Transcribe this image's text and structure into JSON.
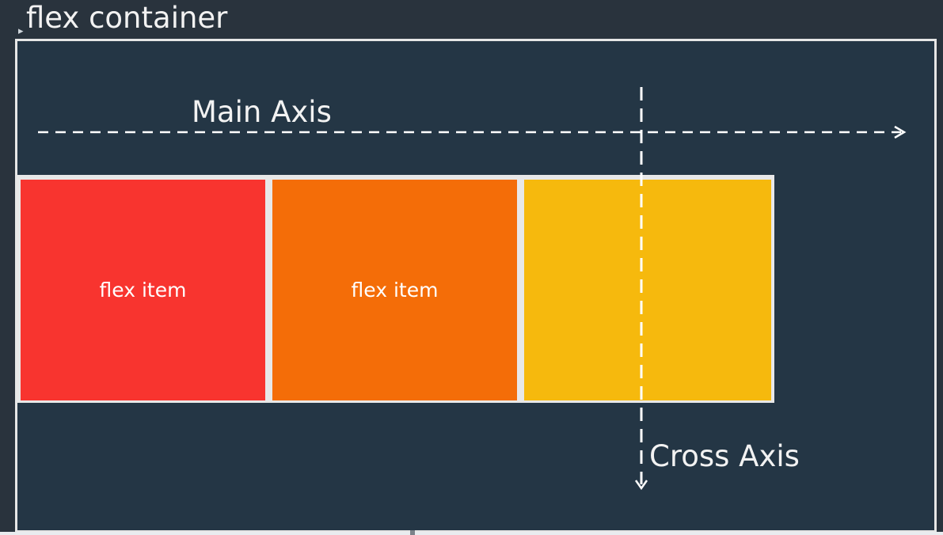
{
  "diagram": {
    "title": "flex container",
    "main_axis_label": "Main Axis",
    "cross_axis_label": "Cross Axis",
    "items": [
      {
        "label": "flex item",
        "color": "#f8342f"
      },
      {
        "label": "flex item",
        "color": "#f46d08"
      },
      {
        "label": "",
        "color": "#f6b90d"
      }
    ],
    "container_color": "#243645",
    "border_color": "#e6e6e6"
  }
}
